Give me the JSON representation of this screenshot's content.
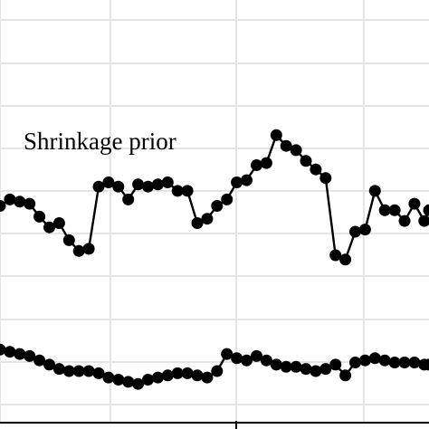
{
  "chart_data": {
    "type": "line",
    "title": "",
    "xlabel": "",
    "ylabel": "",
    "grid": true,
    "xlim": [
      0,
      100
    ],
    "ylim": [
      0,
      100
    ],
    "x": [
      0,
      2.3,
      4.6,
      6.9,
      9.2,
      11.5,
      13.8,
      16.1,
      18.4,
      20.7,
      23.0,
      25.3,
      27.6,
      29.9,
      32.2,
      34.5,
      36.8,
      39.1,
      41.4,
      43.7,
      46.0,
      48.3,
      50.6,
      52.9,
      55.2,
      57.5,
      59.8,
      62.1,
      64.4,
      66.7,
      69.0,
      71.3,
      73.6,
      75.9,
      78.2,
      80.5,
      82.8,
      85.1,
      87.4,
      89.7,
      92.0,
      94.3,
      96.6,
      98.9,
      100
    ],
    "series": [
      {
        "annotation": "Shrinkage prior",
        "values": [
          52,
          53.5,
          53,
          52.5,
          49.5,
          47,
          48,
          44,
          41.5,
          42,
          56.5,
          57.5,
          56.5,
          53.5,
          57,
          56.5,
          57,
          57.5,
          55.5,
          55.5,
          48,
          49,
          52,
          53.5,
          57.5,
          58,
          61.5,
          62,
          68.5,
          66,
          65,
          62.5,
          60.5,
          58.5,
          40.5,
          39.5,
          46,
          46.5,
          55.5,
          51,
          51,
          48.5,
          52.5,
          48.5,
          51
        ]
      },
      {
        "values": [
          18.5,
          18,
          17.5,
          17,
          16,
          15,
          14,
          13.5,
          13.5,
          13.5,
          13,
          12,
          11.5,
          11,
          10.5,
          11.5,
          12,
          12.5,
          13,
          13,
          12.5,
          12,
          13.5,
          17.5,
          16.5,
          16,
          17,
          16,
          15,
          14.5,
          14.5,
          14,
          13.5,
          14,
          15,
          12.5,
          15.5,
          16,
          16.5,
          16,
          15.5,
          15.5,
          15.5,
          15,
          15
        ]
      }
    ]
  }
}
